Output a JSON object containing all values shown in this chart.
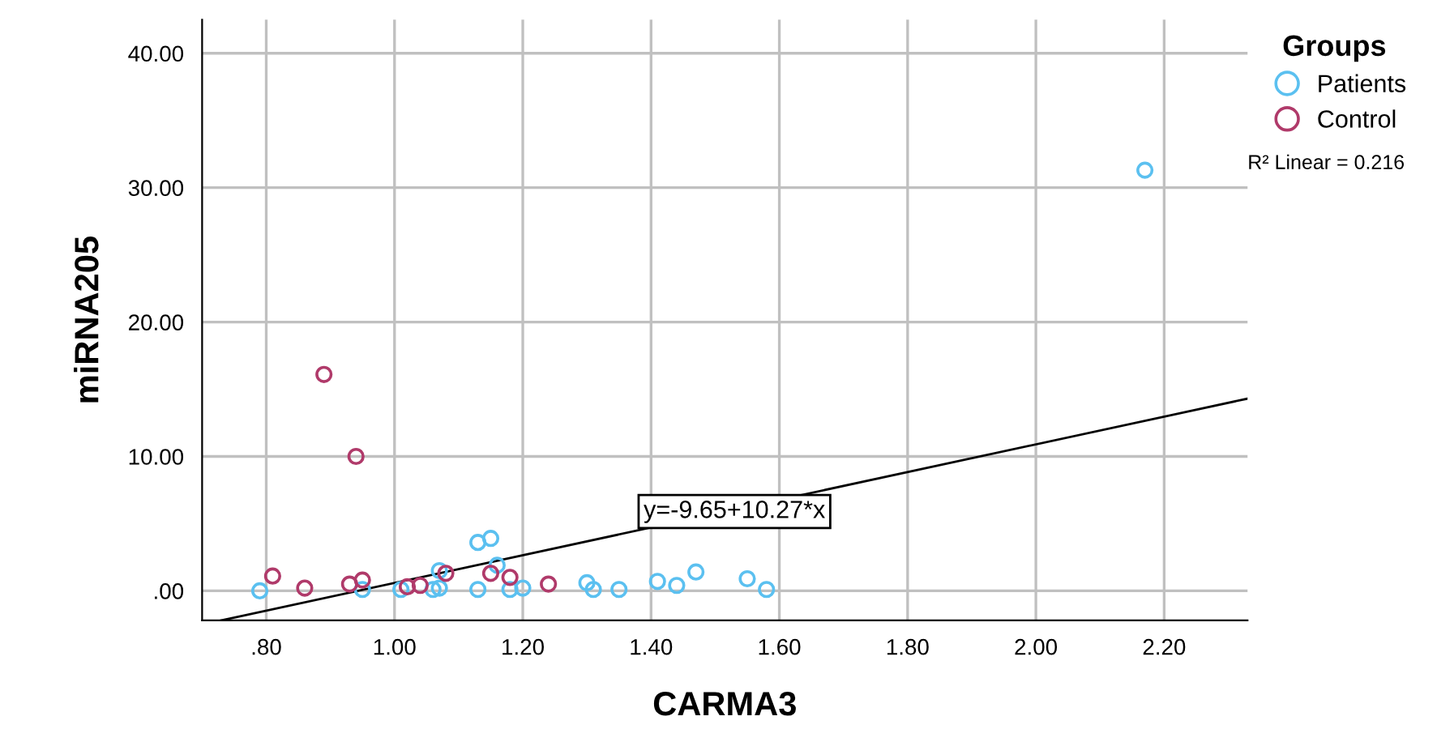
{
  "chart_data": {
    "type": "scatter",
    "xlabel": "CARMA3",
    "ylabel": "miRNA205",
    "legend_title": "Groups",
    "legend": "right",
    "grid": true,
    "marker": "circle",
    "xlim": [
      0.7,
      2.33
    ],
    "ylim": [
      -2.2,
      42.5
    ],
    "xticks": [
      {
        "value": 0.8,
        "label": ".80"
      },
      {
        "value": 1.0,
        "label": "1.00"
      },
      {
        "value": 1.2,
        "label": "1.20"
      },
      {
        "value": 1.4,
        "label": "1.40"
      },
      {
        "value": 1.6,
        "label": "1.60"
      },
      {
        "value": 1.8,
        "label": "1.80"
      },
      {
        "value": 2.0,
        "label": "2.00"
      },
      {
        "value": 2.2,
        "label": "2.20"
      }
    ],
    "yticks": [
      {
        "value": 0,
        "label": ".00"
      },
      {
        "value": 10,
        "label": "10.00"
      },
      {
        "value": 20,
        "label": "20.00"
      },
      {
        "value": 30,
        "label": "30.00"
      },
      {
        "value": 40,
        "label": "40.00"
      }
    ],
    "series": [
      {
        "name": "Patients",
        "color": "#5bc0f0",
        "x": [
          0.79,
          0.95,
          1.01,
          1.06,
          1.07,
          1.07,
          1.13,
          1.15,
          1.13,
          1.16,
          1.18,
          1.2,
          1.3,
          1.31,
          1.35,
          1.41,
          1.44,
          1.47,
          1.55,
          1.58,
          2.17
        ],
        "values": [
          0,
          0.1,
          0.1,
          0.1,
          0.2,
          1.5,
          3.6,
          3.9,
          0.1,
          1.9,
          0.1,
          0.2,
          0.6,
          0.1,
          0.1,
          0.7,
          0.4,
          1.4,
          0.9,
          0.1,
          31.3
        ]
      },
      {
        "name": "Control",
        "color": "#b03a6a",
        "x": [
          0.81,
          0.86,
          0.89,
          0.93,
          0.94,
          0.95,
          1.02,
          1.04,
          1.08,
          1.15,
          1.18,
          1.24
        ],
        "values": [
          1.1,
          0.2,
          16.1,
          0.5,
          10.0,
          0.8,
          0.3,
          0.4,
          1.3,
          1.3,
          1.0,
          0.5
        ]
      },
      {
        "type": "line",
        "marker": "none",
        "color": "#000000",
        "x": [
          0.73,
          2.33
        ],
        "values": [
          -2.2,
          14.3
        ]
      }
    ],
    "annotations": [
      {
        "text": "y=-9.65+10.27*x",
        "x": 1.53,
        "y": 5.9
      },
      "R² Linear = 0.216"
    ]
  }
}
